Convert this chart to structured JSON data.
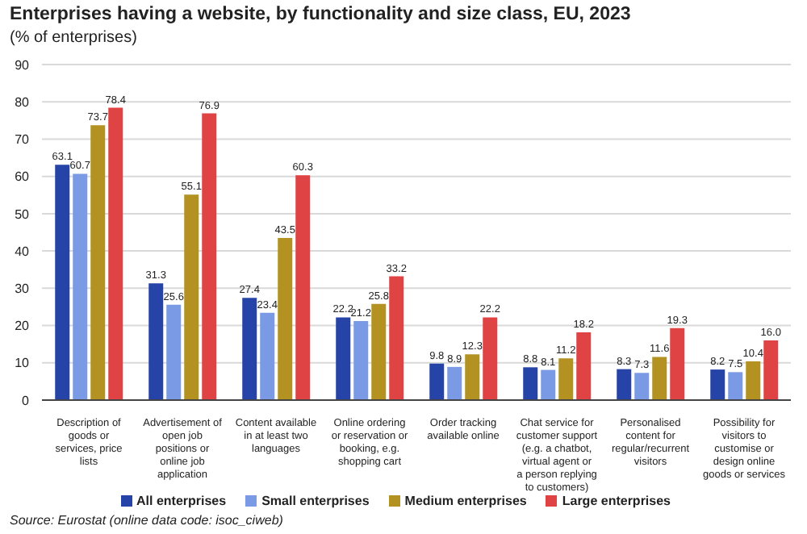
{
  "chart_data": {
    "type": "bar",
    "title": "Enterprises having a website, by functionality and size class, EU, 2023",
    "subtitle": "(% of enterprises)",
    "categories": [
      "Description of goods or services, price lists",
      "Advertisement of open job positions or online job application",
      "Content available in at least two languages",
      "Online ordering or reservation or booking, e.g. shopping cart",
      "Order tracking available online",
      "Chat service for customer support (e.g. a chatbot, virtual agent or a person replying to customers)",
      "Personalised content for regular/recurrent visitors",
      "Possibility for visitors to customise or design online goods or services"
    ],
    "series": [
      {
        "name": "All enterprises",
        "color": "#2644a7",
        "values": [
          63.1,
          31.3,
          27.4,
          22.2,
          9.8,
          8.8,
          8.3,
          8.2
        ],
        "value_labels": [
          "63.1",
          "31.3",
          "27.4",
          "22.2",
          "9.8",
          "8.8",
          "8.3",
          "8.2"
        ]
      },
      {
        "name": "Small enterprises",
        "color": "#7b9ae6",
        "values": [
          60.7,
          25.6,
          23.4,
          21.2,
          8.9,
          8.1,
          7.3,
          7.5
        ],
        "value_labels": [
          "60.7",
          "25.6",
          "23.4",
          "21.2",
          "8.9",
          "8.1",
          "7.3",
          "7.5"
        ]
      },
      {
        "name": "Medium enterprises",
        "color": "#b39222",
        "values": [
          73.7,
          55.1,
          43.5,
          25.8,
          12.3,
          11.2,
          11.6,
          10.4
        ],
        "value_labels": [
          "73.7",
          "55.1",
          "43.5",
          "25.8",
          "12.3",
          "11.2",
          "11.6",
          "10.4"
        ]
      },
      {
        "name": "Large enterprises",
        "color": "#e04343",
        "values": [
          78.4,
          76.9,
          60.3,
          33.2,
          22.2,
          18.2,
          19.3,
          16.0
        ],
        "value_labels": [
          "78.4",
          "76.9",
          "60.3",
          "33.2",
          "22.2",
          "18.2",
          "19.3",
          "16.0"
        ]
      }
    ],
    "ylim": [
      0,
      90
    ],
    "yticks": [
      0,
      10,
      20,
      30,
      40,
      50,
      60,
      70,
      80,
      90
    ],
    "grid": "y",
    "legend": "bottom",
    "annotations": [
      "Source: Eurostat (online data code: isoc_ciweb)"
    ]
  }
}
